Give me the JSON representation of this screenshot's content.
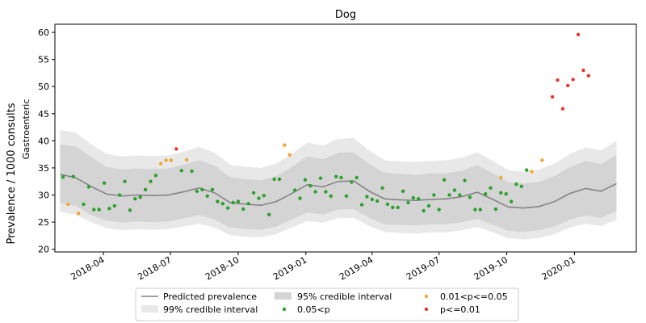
{
  "chart_data": {
    "type": "line",
    "title": "Dog",
    "ylabel": "Prevalence / 1000 consults",
    "ylabel2": "Gastroenteric",
    "xlabel": "",
    "ylim": [
      19.5,
      61.5
    ],
    "xlim": [
      "2018-01-25",
      "2020-03-25"
    ],
    "yticks": [
      20,
      25,
      30,
      35,
      40,
      45,
      50,
      55,
      60
    ],
    "xticks": [
      {
        "date": "2018-04-01",
        "label": "2018-04"
      },
      {
        "date": "2018-07-01",
        "label": "2018-07"
      },
      {
        "date": "2018-10-01",
        "label": "2018-10"
      },
      {
        "date": "2019-01-01",
        "label": "2019-01"
      },
      {
        "date": "2019-04-01",
        "label": "2019-04"
      },
      {
        "date": "2019-07-01",
        "label": "2019-07"
      },
      {
        "date": "2019-10-01",
        "label": "2019-10"
      },
      {
        "date": "2020-01-01",
        "label": "2020-01"
      }
    ],
    "grid": false,
    "legend_position": "below",
    "legend": [
      {
        "key": "pred",
        "label": "Predicted prevalence"
      },
      {
        "key": "ci99",
        "label": "99% credible interval"
      },
      {
        "key": "ci95",
        "label": "95% credible interval"
      },
      {
        "key": "p005",
        "label": "0.05<p"
      },
      {
        "key": "p001",
        "label": "0.01<p<=0.05"
      },
      {
        "key": "p0",
        "label": "p<=0.01"
      }
    ],
    "colors": {
      "pred": "#808080",
      "ci99": "#e8e8e8",
      "ci95": "#d4d4d4",
      "p005": "#2ca02c",
      "p001": "#f0a830",
      "p0": "#e8372a"
    },
    "series": [
      {
        "name": "Predicted prevalence",
        "key": "pred",
        "x": [
          "2018-02-01",
          "2018-02-22",
          "2018-03-15",
          "2018-04-05",
          "2018-04-26",
          "2018-05-17",
          "2018-06-07",
          "2018-06-28",
          "2018-07-19",
          "2018-08-09",
          "2018-08-30",
          "2018-09-20",
          "2018-10-11",
          "2018-11-01",
          "2018-11-22",
          "2018-12-13",
          "2019-01-03",
          "2019-01-24",
          "2019-02-14",
          "2019-03-07",
          "2019-03-28",
          "2019-04-18",
          "2019-05-09",
          "2019-05-30",
          "2019-06-20",
          "2019-07-11",
          "2019-08-01",
          "2019-08-22",
          "2019-09-12",
          "2019-10-03",
          "2019-10-24",
          "2019-11-14",
          "2019-12-05",
          "2019-12-26",
          "2020-01-16",
          "2020-02-06",
          "2020-02-27"
        ],
        "values": [
          33.8,
          33.2,
          31.6,
          30.2,
          29.8,
          30.0,
          29.9,
          30.0,
          30.6,
          31.3,
          30.4,
          28.6,
          28.3,
          28.1,
          28.8,
          30.3,
          31.9,
          31.5,
          32.5,
          32.6,
          30.7,
          29.3,
          29.1,
          29.0,
          29.2,
          29.3,
          29.7,
          30.5,
          29.2,
          27.8,
          27.6,
          27.9,
          28.8,
          30.3,
          31.2,
          30.7,
          32.1
        ]
      },
      {
        "name": "95% credible interval",
        "key": "ci95",
        "x": [
          "2018-02-01",
          "2018-02-22",
          "2018-03-15",
          "2018-04-05",
          "2018-04-26",
          "2018-05-17",
          "2018-06-07",
          "2018-06-28",
          "2018-07-19",
          "2018-08-09",
          "2018-08-30",
          "2018-09-20",
          "2018-10-11",
          "2018-11-01",
          "2018-11-22",
          "2018-12-13",
          "2019-01-03",
          "2019-01-24",
          "2019-02-14",
          "2019-03-07",
          "2019-03-28",
          "2019-04-18",
          "2019-05-09",
          "2019-05-30",
          "2019-06-20",
          "2019-07-11",
          "2019-08-01",
          "2019-08-22",
          "2019-09-12",
          "2019-10-03",
          "2019-10-24",
          "2019-11-14",
          "2019-12-05",
          "2019-12-26",
          "2020-01-16",
          "2020-02-06",
          "2020-02-27"
        ],
        "lower": [
          28.5,
          28.0,
          26.3,
          25.3,
          24.9,
          25.1,
          25.0,
          25.1,
          25.7,
          26.3,
          25.5,
          24.0,
          23.7,
          23.6,
          24.2,
          25.5,
          26.8,
          26.4,
          27.3,
          27.4,
          25.8,
          24.6,
          24.5,
          24.4,
          24.6,
          24.6,
          25.0,
          25.6,
          24.5,
          23.4,
          23.2,
          23.5,
          24.2,
          25.5,
          26.2,
          25.8,
          27.0
        ],
        "upper": [
          39.3,
          39.0,
          37.0,
          35.2,
          34.7,
          34.9,
          34.8,
          34.9,
          35.6,
          36.4,
          35.4,
          33.3,
          32.9,
          32.7,
          33.5,
          35.2,
          37.1,
          36.6,
          37.8,
          37.9,
          35.7,
          34.1,
          33.9,
          33.7,
          34.0,
          34.0,
          34.5,
          35.5,
          34.0,
          32.4,
          32.1,
          32.4,
          33.5,
          35.2,
          36.3,
          35.7,
          37.4
        ]
      },
      {
        "name": "99% credible interval",
        "key": "ci99",
        "x": [
          "2018-02-01",
          "2018-02-22",
          "2018-03-15",
          "2018-04-05",
          "2018-04-26",
          "2018-05-17",
          "2018-06-07",
          "2018-06-28",
          "2018-07-19",
          "2018-08-09",
          "2018-08-30",
          "2018-09-20",
          "2018-10-11",
          "2018-11-01",
          "2018-11-22",
          "2018-12-13",
          "2019-01-03",
          "2019-01-24",
          "2019-02-14",
          "2019-03-07",
          "2019-03-28",
          "2019-04-18",
          "2019-05-09",
          "2019-05-30",
          "2019-06-20",
          "2019-07-11",
          "2019-08-01",
          "2019-08-22",
          "2019-09-12",
          "2019-10-03",
          "2019-10-24",
          "2019-11-14",
          "2019-12-05",
          "2019-12-26",
          "2020-01-16",
          "2020-02-06",
          "2020-02-27"
        ],
        "lower": [
          26.9,
          26.4,
          25.0,
          23.9,
          23.5,
          23.7,
          23.6,
          23.7,
          24.2,
          24.7,
          24.0,
          22.6,
          22.3,
          22.2,
          22.8,
          24.0,
          25.2,
          24.9,
          25.7,
          25.8,
          24.3,
          23.2,
          23.0,
          22.9,
          23.1,
          23.1,
          23.5,
          24.1,
          23.1,
          22.0,
          21.8,
          22.1,
          22.8,
          24.0,
          24.7,
          24.3,
          25.4
        ],
        "upper": [
          42.0,
          41.5,
          39.4,
          37.6,
          37.1,
          37.3,
          37.2,
          37.3,
          38.0,
          38.9,
          37.8,
          35.6,
          35.2,
          35.0,
          35.8,
          37.6,
          39.7,
          39.1,
          40.4,
          40.5,
          38.2,
          36.4,
          36.2,
          36.1,
          36.3,
          36.4,
          36.9,
          37.9,
          36.3,
          34.6,
          34.3,
          34.7,
          35.8,
          37.6,
          38.8,
          38.2,
          40.0
        ]
      },
      {
        "name": "0.05<p",
        "key": "p005",
        "points": [
          [
            "2018-02-05",
            33.3
          ],
          [
            "2018-02-19",
            33.4
          ],
          [
            "2018-03-05",
            28.3
          ],
          [
            "2018-03-12",
            31.5
          ],
          [
            "2018-03-19",
            27.3
          ],
          [
            "2018-03-26",
            27.3
          ],
          [
            "2018-04-02",
            32.2
          ],
          [
            "2018-04-09",
            27.5
          ],
          [
            "2018-04-16",
            28.0
          ],
          [
            "2018-04-23",
            30.0
          ],
          [
            "2018-04-30",
            32.5
          ],
          [
            "2018-05-07",
            27.2
          ],
          [
            "2018-05-14",
            29.3
          ],
          [
            "2018-05-21",
            29.6
          ],
          [
            "2018-05-28",
            31.0
          ],
          [
            "2018-06-04",
            32.5
          ],
          [
            "2018-06-11",
            33.6
          ],
          [
            "2018-07-16",
            34.5
          ],
          [
            "2018-07-30",
            34.4
          ],
          [
            "2018-08-06",
            30.7
          ],
          [
            "2018-08-13",
            31.0
          ],
          [
            "2018-08-20",
            29.8
          ],
          [
            "2018-08-27",
            31.0
          ],
          [
            "2018-09-03",
            28.8
          ],
          [
            "2018-09-10",
            28.4
          ],
          [
            "2018-09-17",
            27.6
          ],
          [
            "2018-09-24",
            28.6
          ],
          [
            "2018-10-01",
            28.8
          ],
          [
            "2018-10-08",
            27.4
          ],
          [
            "2018-10-15",
            28.4
          ],
          [
            "2018-10-22",
            30.4
          ],
          [
            "2018-10-29",
            29.4
          ],
          [
            "2018-11-05",
            29.9
          ],
          [
            "2018-11-12",
            26.4
          ],
          [
            "2018-11-19",
            32.9
          ],
          [
            "2018-11-26",
            32.9
          ],
          [
            "2018-12-17",
            30.9
          ],
          [
            "2018-12-24",
            29.4
          ],
          [
            "2018-12-31",
            32.8
          ],
          [
            "2019-01-07",
            31.7
          ],
          [
            "2019-01-14",
            30.6
          ],
          [
            "2019-01-21",
            33.1
          ],
          [
            "2019-01-28",
            30.6
          ],
          [
            "2019-02-04",
            29.8
          ],
          [
            "2019-02-11",
            33.4
          ],
          [
            "2019-02-18",
            33.2
          ],
          [
            "2019-02-25",
            29.8
          ],
          [
            "2019-03-04",
            32.4
          ],
          [
            "2019-03-11",
            33.2
          ],
          [
            "2019-03-18",
            28.2
          ],
          [
            "2019-03-25",
            29.7
          ],
          [
            "2019-04-01",
            29.2
          ],
          [
            "2019-04-08",
            28.9
          ],
          [
            "2019-04-15",
            31.3
          ],
          [
            "2019-04-22",
            28.3
          ],
          [
            "2019-04-29",
            27.7
          ],
          [
            "2019-05-06",
            27.7
          ],
          [
            "2019-05-13",
            30.7
          ],
          [
            "2019-05-20",
            28.6
          ],
          [
            "2019-05-27",
            29.5
          ],
          [
            "2019-06-03",
            29.3
          ],
          [
            "2019-06-10",
            27.1
          ],
          [
            "2019-06-17",
            28.0
          ],
          [
            "2019-06-24",
            30.0
          ],
          [
            "2019-07-01",
            27.3
          ],
          [
            "2019-07-08",
            32.8
          ],
          [
            "2019-07-15",
            30.0
          ],
          [
            "2019-07-22",
            30.9
          ],
          [
            "2019-07-29",
            30.0
          ],
          [
            "2019-08-05",
            32.7
          ],
          [
            "2019-08-12",
            29.6
          ],
          [
            "2019-08-19",
            27.3
          ],
          [
            "2019-08-26",
            27.3
          ],
          [
            "2019-09-02",
            30.2
          ],
          [
            "2019-09-09",
            31.3
          ],
          [
            "2019-09-16",
            27.4
          ],
          [
            "2019-09-23",
            30.4
          ],
          [
            "2019-09-30",
            30.2
          ],
          [
            "2019-10-07",
            28.8
          ],
          [
            "2019-10-14",
            32.0
          ],
          [
            "2019-10-21",
            31.6
          ],
          [
            "2019-10-28",
            34.6
          ]
        ]
      },
      {
        "name": "0.01<p<=0.05",
        "key": "p001",
        "points": [
          [
            "2018-02-12",
            28.3
          ],
          [
            "2018-02-26",
            26.6
          ],
          [
            "2018-06-18",
            35.8
          ],
          [
            "2018-06-25",
            36.4
          ],
          [
            "2018-07-02",
            36.4
          ],
          [
            "2018-07-23",
            36.5
          ],
          [
            "2018-12-03",
            39.2
          ],
          [
            "2018-12-10",
            37.4
          ],
          [
            "2019-09-23",
            33.2
          ],
          [
            "2019-11-04",
            34.3
          ],
          [
            "2019-11-18",
            36.4
          ]
        ]
      },
      {
        "name": "p<=0.01",
        "key": "p0",
        "points": [
          [
            "2018-07-09",
            38.5
          ],
          [
            "2019-12-02",
            48.1
          ],
          [
            "2019-12-09",
            51.2
          ],
          [
            "2019-12-16",
            45.9
          ],
          [
            "2019-12-23",
            50.2
          ],
          [
            "2019-12-30",
            51.3
          ],
          [
            "2020-01-06",
            59.6
          ],
          [
            "2020-01-13",
            53.0
          ],
          [
            "2020-01-20",
            52.0
          ]
        ]
      }
    ]
  }
}
